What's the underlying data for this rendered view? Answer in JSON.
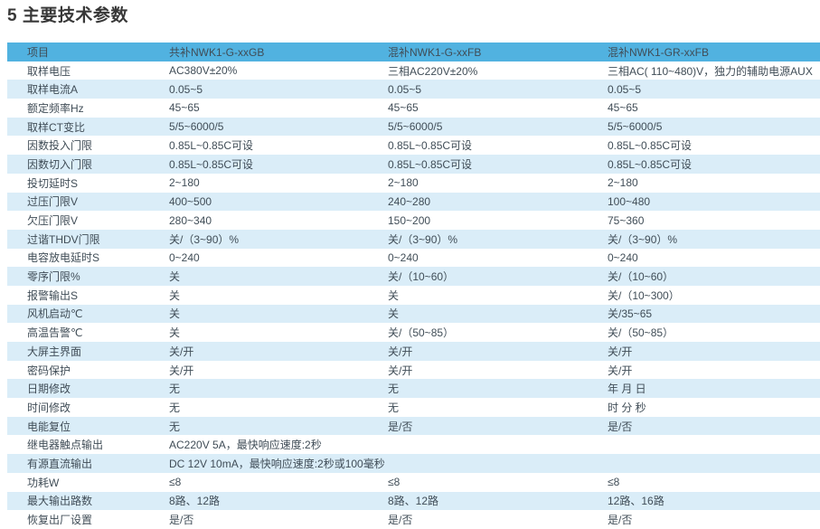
{
  "title": "5 主要技术参数",
  "colors": {
    "header_bg": "#51b2e0",
    "row_alt_bg": "#daedf8",
    "text": "#404d57",
    "title": "#383838"
  },
  "table": {
    "columns": [
      "项目",
      "共补NWK1-G-xxGB",
      "混补NWK1-G-xxFB",
      "混补NWK1-GR-xxFB"
    ],
    "rows": [
      {
        "label": "取样电压",
        "span": false,
        "values": [
          "AC380V±20%",
          "三相AC220V±20%",
          "三相AC( 110~480)V，独力的辅助电源AUX"
        ]
      },
      {
        "label": "取样电流A",
        "span": false,
        "values": [
          "0.05~5",
          "0.05~5",
          "0.05~5"
        ]
      },
      {
        "label": "额定频率Hz",
        "span": false,
        "values": [
          "45~65",
          "45~65",
          "45~65"
        ]
      },
      {
        "label": "取样CT变比",
        "span": false,
        "values": [
          "5/5~6000/5",
          "5/5~6000/5",
          "5/5~6000/5"
        ]
      },
      {
        "label": "因数投入门限",
        "span": false,
        "values": [
          "0.85L~0.85C可设",
          "0.85L~0.85C可设",
          "0.85L~0.85C可设"
        ]
      },
      {
        "label": "因数切入门限",
        "span": false,
        "values": [
          "0.85L~0.85C可设",
          "0.85L~0.85C可设",
          "0.85L~0.85C可设"
        ]
      },
      {
        "label": "投切延时S",
        "span": false,
        "values": [
          "2~180",
          "2~180",
          "2~180"
        ]
      },
      {
        "label": "过压门限V",
        "span": false,
        "values": [
          "400~500",
          "240~280",
          "100~480"
        ]
      },
      {
        "label": "欠压门限V",
        "span": false,
        "values": [
          "280~340",
          "150~200",
          "75~360"
        ]
      },
      {
        "label": "过谐THDV门限",
        "span": false,
        "values": [
          "关/（3~90）%",
          "关/（3~90）%",
          "关/（3~90）%"
        ]
      },
      {
        "label": "电容放电延时S",
        "span": false,
        "values": [
          "0~240",
          "0~240",
          "0~240"
        ]
      },
      {
        "label": "零序门限%",
        "span": false,
        "values": [
          "关",
          "关/（10~60）",
          "关/（10~60）"
        ]
      },
      {
        "label": "报警输出S",
        "span": false,
        "values": [
          "关",
          "关",
          "关/（10~300）"
        ]
      },
      {
        "label": "风机启动℃",
        "span": false,
        "values": [
          "关",
          "关",
          "关/35~65"
        ]
      },
      {
        "label": "高温告警℃",
        "span": false,
        "values": [
          "关",
          "关/（50~85）",
          "关/（50~85）"
        ]
      },
      {
        "label": "大屏主界面",
        "span": false,
        "values": [
          "关/开",
          "关/开",
          "关/开"
        ]
      },
      {
        "label": "密码保护",
        "span": false,
        "values": [
          "关/开",
          "关/开",
          "关/开"
        ]
      },
      {
        "label": "日期修改",
        "span": false,
        "values": [
          "无",
          "无",
          "年 月 日"
        ]
      },
      {
        "label": "时间修改",
        "span": false,
        "values": [
          "无",
          "无",
          "时 分 秒"
        ]
      },
      {
        "label": "电能复位",
        "span": false,
        "values": [
          "无",
          "是/否",
          "是/否"
        ]
      },
      {
        "label": "继电器触点输出",
        "span": true,
        "values": [
          "AC220V 5A，最快响应速度:2秒"
        ]
      },
      {
        "label": "有源直流输出",
        "span": true,
        "values": [
          "DC 12V 10mA，最快响应速度:2秒或100毫秒"
        ]
      },
      {
        "label": "功耗W",
        "span": false,
        "values": [
          "≤8",
          "≤8",
          "≤8"
        ]
      },
      {
        "label": "最大输出路数",
        "span": false,
        "values": [
          "8路、12路",
          "8路、12路",
          "12路、16路"
        ]
      },
      {
        "label": "恢复出厂设置",
        "span": false,
        "values": [
          "是/否",
          "是/否",
          "是/否"
        ]
      }
    ]
  }
}
